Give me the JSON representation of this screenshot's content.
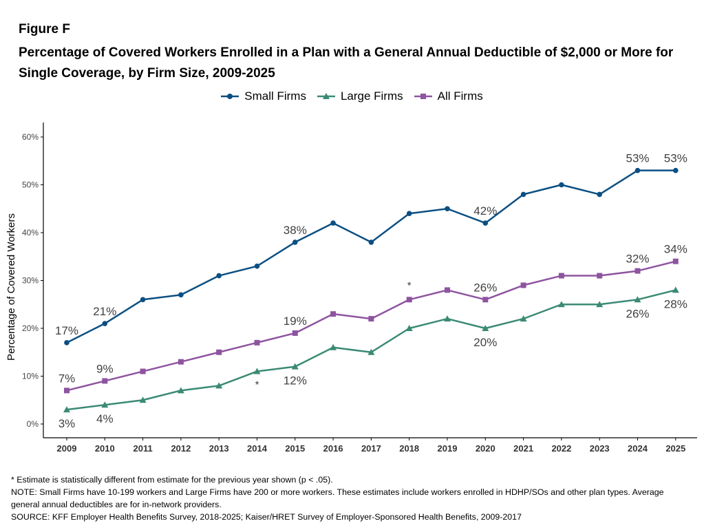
{
  "figure": {
    "label": "Figure F",
    "title": "Percentage of Covered Workers Enrolled in a Plan with a General Annual Deductible of $2,000 or More for Single Coverage, by Firm Size, 2009-2025"
  },
  "notes": {
    "significance": "* Estimate is statistically different from estimate for the previous year shown (p < .05).",
    "note": "NOTE: Small Firms have 10-199 workers and Large Firms have 200 or more workers. These estimates include workers enrolled in HDHP/SOs and other plan types. Average general annual deductibles are for in-network providers.",
    "source": "SOURCE: KFF Employer Health Benefits Survey, 2018-2025; Kaiser/HRET Survey of Employer-Sponsored Health Benefits, 2009-2017"
  },
  "colors": {
    "small": "#0b4f82",
    "large": "#3a8a74",
    "all": "#8e54a0",
    "label": "#404040",
    "axis": "#000000"
  },
  "chart_data": {
    "type": "line",
    "ylabel": "Percentage of Covered Workers",
    "xlabel": "",
    "ylim": [
      0,
      60
    ],
    "yticks": [
      0,
      10,
      20,
      30,
      40,
      50,
      60
    ],
    "yticklabels": [
      "0%",
      "10%",
      "20%",
      "30%",
      "40%",
      "50%",
      "60%"
    ],
    "legend_position": "top",
    "grid": false,
    "categories": [
      "2009",
      "2010",
      "2011",
      "2012",
      "2013",
      "2014",
      "2015",
      "2016",
      "2017",
      "2018",
      "2019",
      "2020",
      "2021",
      "2022",
      "2023",
      "2024",
      "2025"
    ],
    "series": [
      {
        "key": "small",
        "name": "Small Firms",
        "marker": "circle",
        "values": [
          17,
          21,
          26,
          27,
          31,
          33,
          38,
          42,
          38,
          44,
          45,
          42,
          48,
          50,
          48,
          53,
          53
        ],
        "labels": [
          {
            "index": 0,
            "text": "17%",
            "pos": "above"
          },
          {
            "index": 1,
            "text": "21%",
            "pos": "above"
          },
          {
            "index": 6,
            "text": "38%",
            "pos": "above"
          },
          {
            "index": 11,
            "text": "42%",
            "pos": "above"
          },
          {
            "index": 15,
            "text": "53%",
            "pos": "above"
          },
          {
            "index": 16,
            "text": "53%",
            "pos": "above"
          }
        ]
      },
      {
        "key": "large",
        "name": "Large Firms",
        "marker": "triangle",
        "values": [
          3,
          4,
          5,
          7,
          8,
          11,
          12,
          16,
          15,
          20,
          22,
          20,
          22,
          25,
          25,
          26,
          28
        ],
        "labels": [
          {
            "index": 0,
            "text": "3%",
            "pos": "below"
          },
          {
            "index": 1,
            "text": "4%",
            "pos": "below"
          },
          {
            "index": 6,
            "text": "12%",
            "pos": "below"
          },
          {
            "index": 11,
            "text": "20%",
            "pos": "below"
          },
          {
            "index": 15,
            "text": "26%",
            "pos": "below"
          },
          {
            "index": 16,
            "text": "28%",
            "pos": "below"
          }
        ]
      },
      {
        "key": "all",
        "name": "All Firms",
        "marker": "square",
        "values": [
          7,
          9,
          11,
          13,
          15,
          17,
          19,
          23,
          22,
          26,
          28,
          26,
          29,
          31,
          31,
          32,
          34
        ],
        "labels": [
          {
            "index": 0,
            "text": "7%",
            "pos": "above"
          },
          {
            "index": 1,
            "text": "9%",
            "pos": "above"
          },
          {
            "index": 6,
            "text": "19%",
            "pos": "above"
          },
          {
            "index": 11,
            "text": "26%",
            "pos": "above"
          },
          {
            "index": 15,
            "text": "32%",
            "pos": "above"
          },
          {
            "index": 16,
            "text": "34%",
            "pos": "above"
          }
        ]
      }
    ],
    "annotations": [
      {
        "text": "*",
        "category": "2014",
        "series": "large",
        "pos": "below"
      },
      {
        "text": "*",
        "category": "2018",
        "series": "all",
        "pos": "above"
      }
    ]
  }
}
